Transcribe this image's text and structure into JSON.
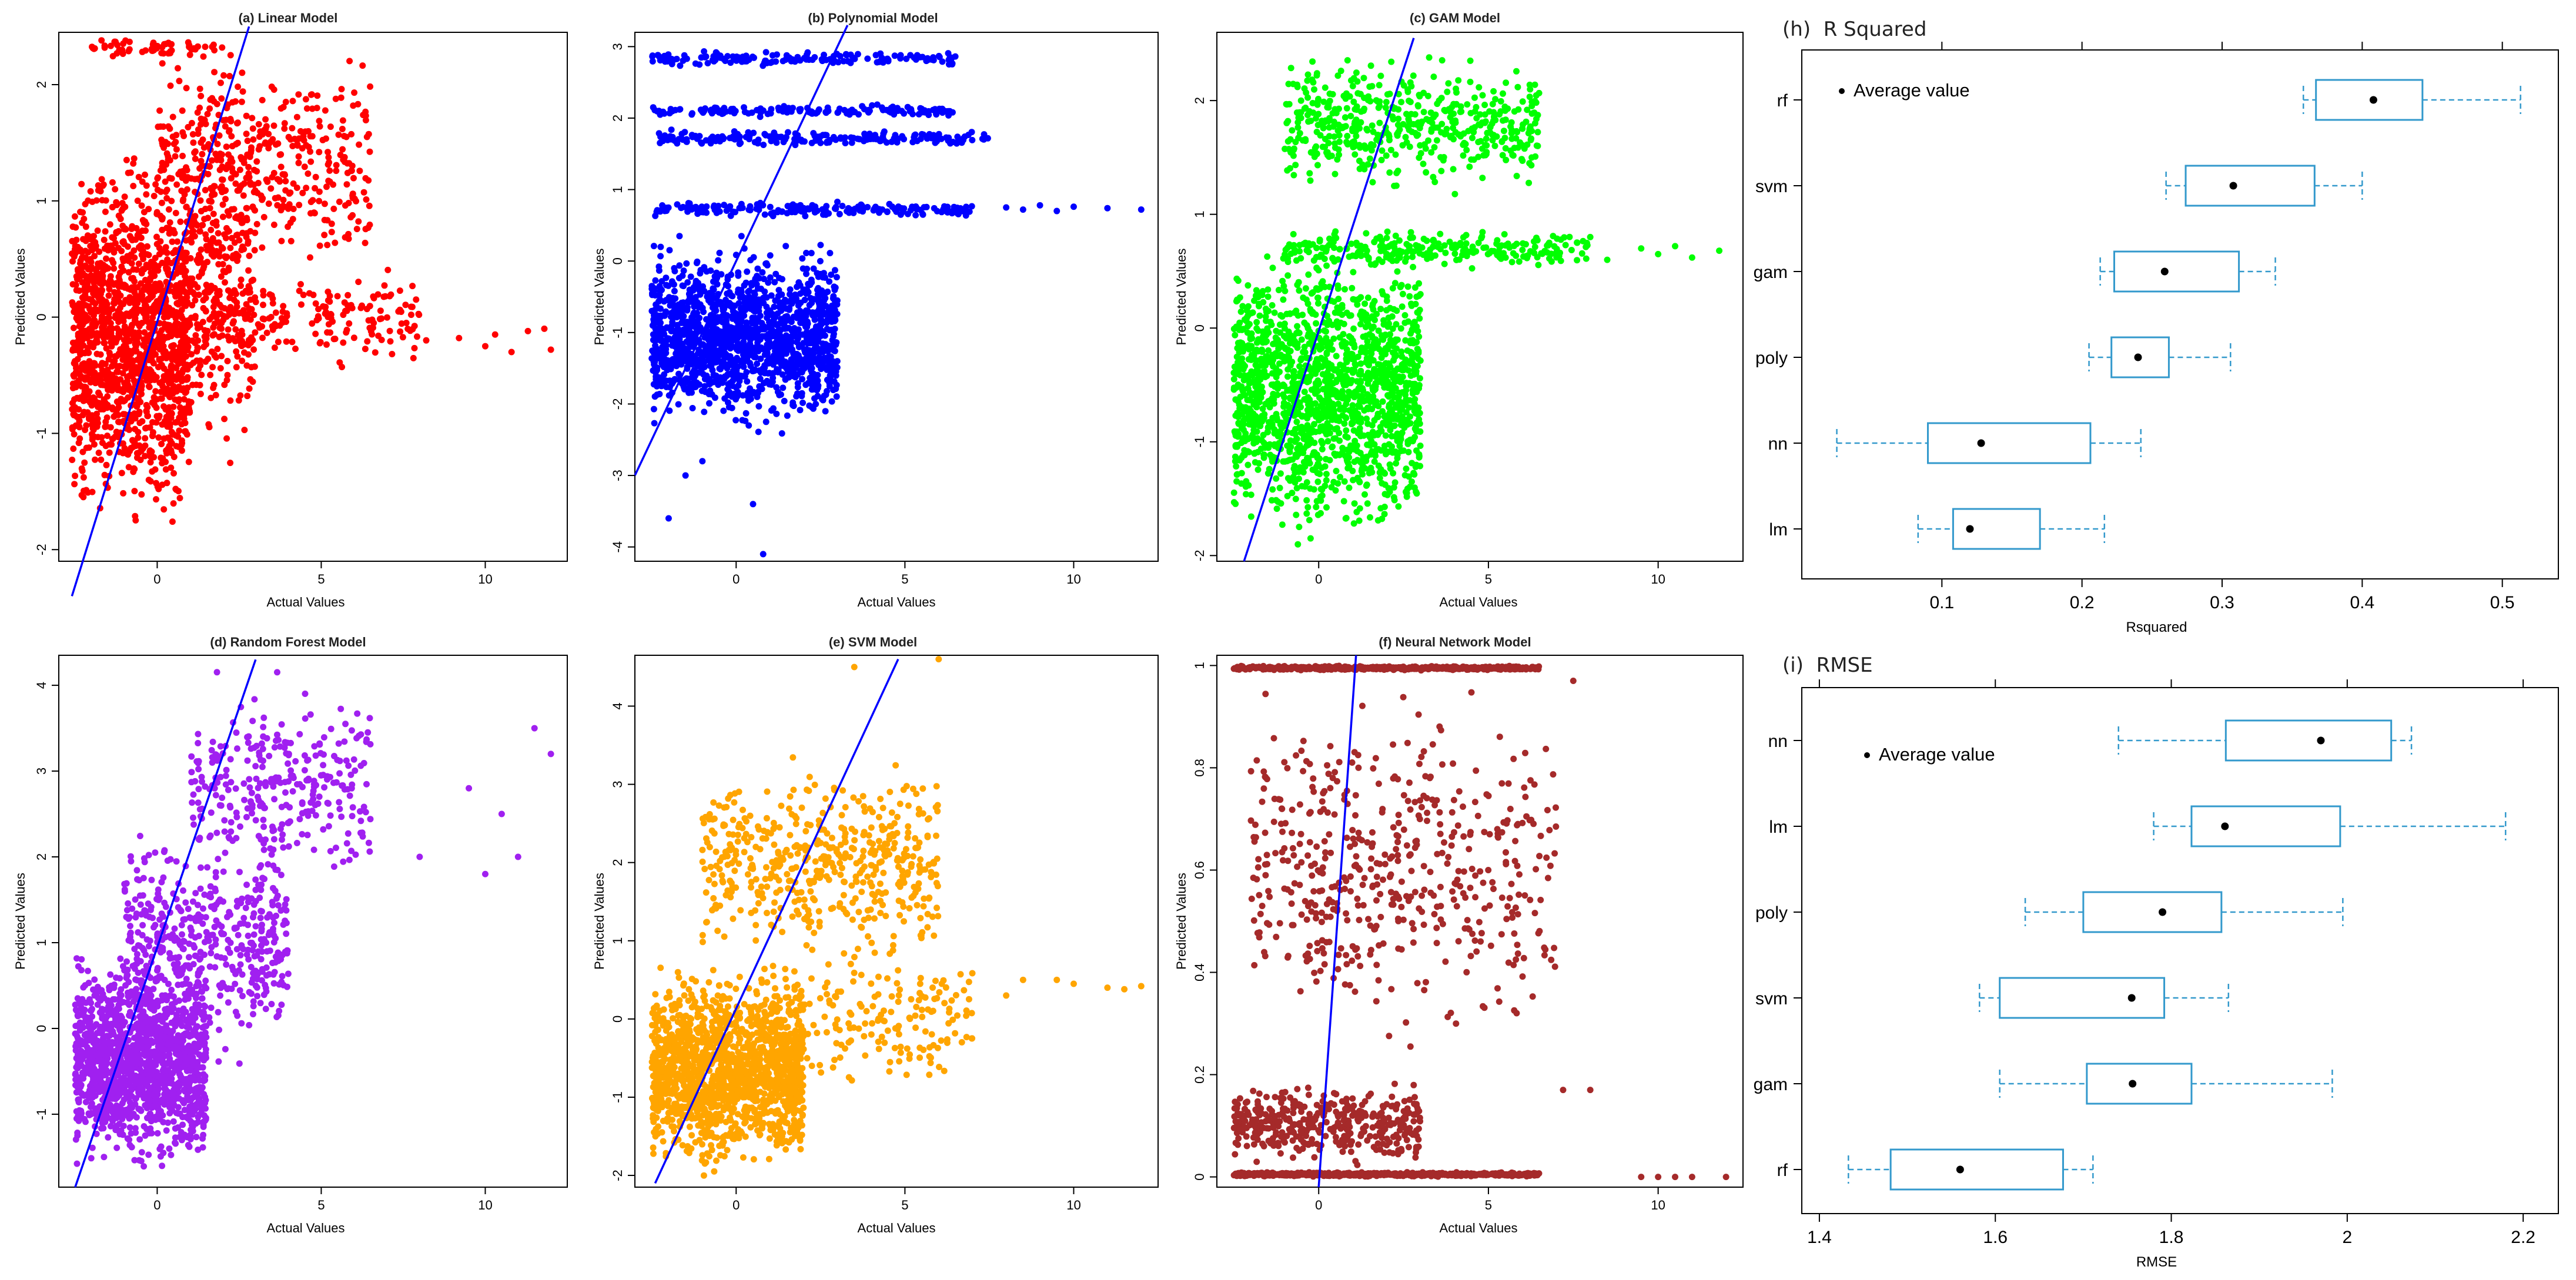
{
  "chart_data": [
    {
      "id": "a",
      "type": "scatter",
      "title": "(a) Linear Model",
      "xlabel": "Actual Values",
      "ylabel": "Predicted Values",
      "xlim": [
        -3,
        12.5
      ],
      "ylim": [
        -2.1,
        2.45
      ],
      "xticks": [
        0,
        5,
        10
      ],
      "yticks": [
        -2,
        -1,
        0,
        1,
        2
      ],
      "color": "#ff0000",
      "fit_line": [
        [
          -2.6,
          -2.4
        ],
        [
          2.8,
          2.5
        ]
      ],
      "n_points_approx": 2500,
      "clusters": [
        {
          "n": 1500,
          "x": [
            -2.6,
            1.0
          ],
          "y": [
            -2.0,
            1.6
          ]
        },
        {
          "n": 300,
          "x": [
            1.0,
            3.0
          ],
          "y": [
            -1.5,
            2.4
          ]
        },
        {
          "n": 400,
          "x": [
            0.0,
            6.5
          ],
          "y": [
            0.2,
            2.4
          ]
        },
        {
          "n": 200,
          "x": [
            1.0,
            8.0
          ],
          "y": [
            -0.5,
            0.5
          ]
        },
        {
          "n": 60,
          "x": [
            -2.0,
            2.0
          ],
          "y": [
            2.2,
            2.42
          ]
        }
      ],
      "points": [
        [
          8.2,
          -0.2
        ],
        [
          9.2,
          -0.18
        ],
        [
          10.0,
          -0.25
        ],
        [
          10.3,
          -0.15
        ],
        [
          10.8,
          -0.3
        ],
        [
          11.3,
          -0.12
        ],
        [
          11.8,
          -0.1
        ],
        [
          12.0,
          -0.28
        ]
      ]
    },
    {
      "id": "b",
      "type": "scatter",
      "title": "(b) Polynomial Model",
      "xlabel": "Actual Values",
      "ylabel": "Predicted Values",
      "xlim": [
        -3,
        12.5
      ],
      "ylim": [
        -4.2,
        3.2
      ],
      "xticks": [
        0,
        5,
        10
      ],
      "yticks": [
        -4,
        -3,
        -2,
        -1,
        0,
        1,
        2,
        3
      ],
      "color": "#0000ff",
      "fit_line": [
        [
          -3.0,
          -3.0
        ],
        [
          3.3,
          3.3
        ]
      ],
      "n_points_approx": 2500,
      "clusters": [
        {
          "n": 1500,
          "x": [
            -2.5,
            3.0
          ],
          "y": [
            -2.5,
            0.4
          ]
        },
        {
          "n": 200,
          "x": [
            -2.5,
            7.0
          ],
          "y": [
            0.6,
            0.85
          ]
        },
        {
          "n": 180,
          "x": [
            -2.5,
            7.5
          ],
          "y": [
            1.6,
            1.85
          ]
        },
        {
          "n": 150,
          "x": [
            -2.5,
            6.5
          ],
          "y": [
            2.0,
            2.2
          ]
        },
        {
          "n": 150,
          "x": [
            -2.5,
            6.5
          ],
          "y": [
            2.7,
            2.95
          ]
        }
      ],
      "points": [
        [
          8.0,
          0.75
        ],
        [
          8.5,
          0.72
        ],
        [
          9.0,
          0.78
        ],
        [
          9.5,
          0.7
        ],
        [
          10.0,
          0.76
        ],
        [
          11.0,
          0.74
        ],
        [
          12.0,
          0.72
        ],
        [
          -2.0,
          -3.6
        ],
        [
          -1.0,
          -2.8
        ],
        [
          0.5,
          -3.4
        ],
        [
          0.8,
          -4.1
        ],
        [
          -1.5,
          -3.0
        ]
      ]
    },
    {
      "id": "c",
      "type": "scatter",
      "title": "(c) GAM Model",
      "xlabel": "Actual Values",
      "ylabel": "Predicted Values",
      "xlim": [
        -3,
        12.5
      ],
      "ylim": [
        -2.05,
        2.6
      ],
      "xticks": [
        0,
        5,
        10
      ],
      "yticks": [
        -2,
        -1,
        0,
        1,
        2
      ],
      "color": "#00ff00",
      "fit_line": [
        [
          -2.2,
          -2.05
        ],
        [
          2.8,
          2.55
        ]
      ],
      "n_points_approx": 2500,
      "clusters": [
        {
          "n": 1600,
          "x": [
            -2.5,
            3.0
          ],
          "y": [
            -2.0,
            0.9
          ]
        },
        {
          "n": 500,
          "x": [
            -1.0,
            6.5
          ],
          "y": [
            1.1,
            2.5
          ]
        },
        {
          "n": 250,
          "x": [
            -1.0,
            8.0
          ],
          "y": [
            0.5,
            0.9
          ]
        }
      ],
      "points": [
        [
          9.5,
          0.7
        ],
        [
          10.0,
          0.65
        ],
        [
          10.5,
          0.72
        ],
        [
          11.0,
          0.62
        ],
        [
          11.8,
          0.68
        ],
        [
          8.0,
          0.8
        ],
        [
          8.5,
          0.6
        ]
      ]
    },
    {
      "id": "d",
      "type": "scatter",
      "title": "(d) Random Forest Model",
      "xlabel": "Actual Values",
      "ylabel": "Predicted Values",
      "xlim": [
        -3,
        12.5
      ],
      "ylim": [
        -1.85,
        4.35
      ],
      "xticks": [
        0,
        5,
        10
      ],
      "yticks": [
        -1,
        0,
        1,
        2,
        3,
        4
      ],
      "color": "#a020f0",
      "fit_line": [
        [
          -2.5,
          -1.85
        ],
        [
          3.0,
          4.3
        ]
      ],
      "n_points_approx": 2500,
      "clusters": [
        {
          "n": 1400,
          "x": [
            -2.5,
            1.5
          ],
          "y": [
            -1.8,
            1.0
          ]
        },
        {
          "n": 500,
          "x": [
            -1.0,
            4.0
          ],
          "y": [
            -0.5,
            2.5
          ]
        },
        {
          "n": 300,
          "x": [
            1.0,
            6.5
          ],
          "y": [
            1.5,
            4.2
          ]
        }
      ],
      "points": [
        [
          8.0,
          2.0
        ],
        [
          9.5,
          2.8
        ],
        [
          10.0,
          1.8
        ],
        [
          10.5,
          2.5
        ],
        [
          11.0,
          2.0
        ],
        [
          11.5,
          3.5
        ],
        [
          12.0,
          3.2
        ]
      ]
    },
    {
      "id": "e",
      "type": "scatter",
      "title": "(e) SVM Model",
      "xlabel": "Actual Values",
      "ylabel": "Predicted Values",
      "xlim": [
        -3,
        12.5
      ],
      "ylim": [
        -2.15,
        4.65
      ],
      "xticks": [
        0,
        5,
        10
      ],
      "yticks": [
        -2,
        -1,
        0,
        1,
        2,
        3,
        4
      ],
      "color": "#ffa500",
      "fit_line": [
        [
          -2.4,
          -2.1
        ],
        [
          4.8,
          4.6
        ]
      ],
      "n_points_approx": 2500,
      "clusters": [
        {
          "n": 1500,
          "x": [
            -2.5,
            2.0
          ],
          "y": [
            -2.1,
            0.8
          ]
        },
        {
          "n": 500,
          "x": [
            -1.0,
            6.0
          ],
          "y": [
            0.5,
            3.5
          ]
        },
        {
          "n": 200,
          "x": [
            1.0,
            7.0
          ],
          "y": [
            -1.0,
            1.0
          ]
        }
      ],
      "points": [
        [
          9.5,
          0.5
        ],
        [
          10.0,
          0.45
        ],
        [
          11.0,
          0.4
        ],
        [
          11.5,
          0.38
        ],
        [
          12.0,
          0.42
        ],
        [
          8.0,
          0.3
        ],
        [
          8.5,
          0.5
        ],
        [
          3.5,
          4.5
        ],
        [
          6.0,
          4.6
        ]
      ]
    },
    {
      "id": "f",
      "type": "scatter",
      "title": "(f) Neural Network Model",
      "xlabel": "Actual Values",
      "ylabel": "Predicted Values",
      "xlim": [
        -3,
        12.5
      ],
      "ylim": [
        -0.02,
        1.02
      ],
      "xticks": [
        0,
        5,
        10
      ],
      "yticks": [
        0.0,
        0.2,
        0.4,
        0.6,
        0.8,
        1.0
      ],
      "color": "#a52a2a",
      "fit_line": [
        [
          0.0,
          -0.02
        ],
        [
          1.1,
          1.02
        ]
      ],
      "n_points_approx": 2500,
      "clusters": [
        {
          "n": 600,
          "x": [
            -2.5,
            6.5
          ],
          "y": [
            0.0,
            0.01
          ]
        },
        {
          "n": 500,
          "x": [
            -2.5,
            6.5
          ],
          "y": [
            0.99,
            1.0
          ]
        },
        {
          "n": 400,
          "x": [
            -2.5,
            3.0
          ],
          "y": [
            0.01,
            0.2
          ]
        },
        {
          "n": 500,
          "x": [
            -2.0,
            7.0
          ],
          "y": [
            0.2,
            1.0
          ]
        }
      ],
      "points": [
        [
          9.5,
          0.0
        ],
        [
          10.0,
          0.0
        ],
        [
          10.5,
          0.0
        ],
        [
          11.0,
          0.0
        ],
        [
          12.0,
          0.0
        ],
        [
          7.2,
          0.17
        ],
        [
          8.0,
          0.17
        ],
        [
          7.5,
          0.97
        ]
      ]
    },
    {
      "id": "h",
      "type": "box",
      "title": "(h)  R Squared",
      "xlabel": "Rsquared",
      "legend_label": "Average value",
      "xlim": [
        0.0,
        0.54
      ],
      "xticks": [
        0.1,
        0.2,
        0.3,
        0.4,
        0.5
      ],
      "color": "#3399cc",
      "categories": [
        "rf",
        "svm",
        "gam",
        "poly",
        "nn",
        "lm"
      ],
      "boxes": [
        {
          "label": "rf",
          "min": 0.358,
          "q1": 0.367,
          "q3": 0.443,
          "max": 0.513,
          "mean": 0.408
        },
        {
          "label": "svm",
          "min": 0.26,
          "q1": 0.274,
          "q3": 0.366,
          "max": 0.4,
          "mean": 0.308
        },
        {
          "label": "gam",
          "min": 0.213,
          "q1": 0.223,
          "q3": 0.312,
          "max": 0.338,
          "mean": 0.259
        },
        {
          "label": "poly",
          "min": 0.205,
          "q1": 0.221,
          "q3": 0.262,
          "max": 0.306,
          "mean": 0.24
        },
        {
          "label": "nn",
          "min": 0.025,
          "q1": 0.09,
          "q3": 0.206,
          "max": 0.242,
          "mean": 0.128
        },
        {
          "label": "lm",
          "min": 0.083,
          "q1": 0.108,
          "q3": 0.17,
          "max": 0.216,
          "mean": 0.12
        }
      ]
    },
    {
      "id": "i",
      "type": "box",
      "title": "(i)  RMSE",
      "xlabel": "RMSE",
      "legend_label": "Average value",
      "xlim": [
        1.38,
        2.24
      ],
      "xticks": [
        1.4,
        1.6,
        1.8,
        2.0,
        2.2
      ],
      "color": "#3399cc",
      "categories": [
        "nn",
        "lm",
        "poly",
        "svm",
        "gam",
        "rf"
      ],
      "boxes": [
        {
          "label": "nn",
          "min": 1.74,
          "q1": 1.862,
          "q3": 2.05,
          "max": 2.073,
          "mean": 1.97
        },
        {
          "label": "lm",
          "min": 1.78,
          "q1": 1.823,
          "q3": 1.992,
          "max": 2.18,
          "mean": 1.861
        },
        {
          "label": "poly",
          "min": 1.634,
          "q1": 1.7,
          "q3": 1.857,
          "max": 1.995,
          "mean": 1.79
        },
        {
          "label": "svm",
          "min": 1.582,
          "q1": 1.605,
          "q3": 1.792,
          "max": 1.865,
          "mean": 1.755
        },
        {
          "label": "gam",
          "min": 1.605,
          "q1": 1.704,
          "q3": 1.823,
          "max": 1.983,
          "mean": 1.756
        },
        {
          "label": "rf",
          "min": 1.433,
          "q1": 1.481,
          "q3": 1.677,
          "max": 1.711,
          "mean": 1.56
        }
      ]
    }
  ]
}
